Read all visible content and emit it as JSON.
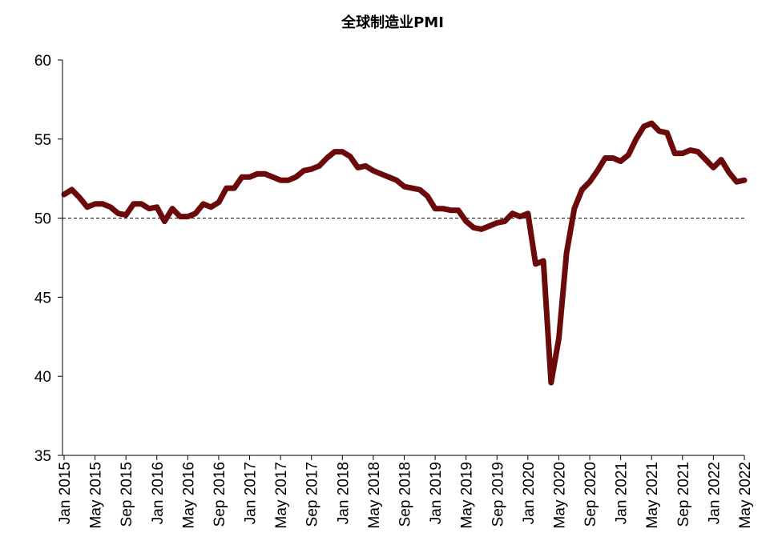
{
  "chart_data": {
    "type": "line",
    "title": "全球制造业PMI",
    "xlabel": "",
    "ylabel": "",
    "ylim": [
      35,
      60
    ],
    "yticks": [
      35,
      40,
      45,
      50,
      55,
      60
    ],
    "reference_line": 50,
    "grid": false,
    "legend": "none",
    "series_color": "#6b0a0a",
    "x_labels": [
      "Jan 2015",
      "May 2015",
      "Sep 2015",
      "Jan 2016",
      "May 2016",
      "Sep 2016",
      "Jan 2017",
      "May 2017",
      "Sep 2017",
      "Jan 2018",
      "May 2018",
      "Sep 2018",
      "Jan 2019",
      "May 2019",
      "Sep 2019",
      "Jan 2020",
      "May 2020",
      "Sep 2020",
      "Jan 2021",
      "May 2021",
      "Sep 2021",
      "Jan 2022",
      "May 2022"
    ],
    "x": [
      "2015-01",
      "2015-02",
      "2015-03",
      "2015-04",
      "2015-05",
      "2015-06",
      "2015-07",
      "2015-08",
      "2015-09",
      "2015-10",
      "2015-11",
      "2015-12",
      "2016-01",
      "2016-02",
      "2016-03",
      "2016-04",
      "2016-05",
      "2016-06",
      "2016-07",
      "2016-08",
      "2016-09",
      "2016-10",
      "2016-11",
      "2016-12",
      "2017-01",
      "2017-02",
      "2017-03",
      "2017-04",
      "2017-05",
      "2017-06",
      "2017-07",
      "2017-08",
      "2017-09",
      "2017-10",
      "2017-11",
      "2017-12",
      "2018-01",
      "2018-02",
      "2018-03",
      "2018-04",
      "2018-05",
      "2018-06",
      "2018-07",
      "2018-08",
      "2018-09",
      "2018-10",
      "2018-11",
      "2018-12",
      "2019-01",
      "2019-02",
      "2019-03",
      "2019-04",
      "2019-05",
      "2019-06",
      "2019-07",
      "2019-08",
      "2019-09",
      "2019-10",
      "2019-11",
      "2019-12",
      "2020-01",
      "2020-02",
      "2020-03",
      "2020-04",
      "2020-05",
      "2020-06",
      "2020-07",
      "2020-08",
      "2020-09",
      "2020-10",
      "2020-11",
      "2020-12",
      "2021-01",
      "2021-02",
      "2021-03",
      "2021-04",
      "2021-05",
      "2021-06",
      "2021-07",
      "2021-08",
      "2021-09",
      "2021-10",
      "2021-11",
      "2021-12",
      "2022-01",
      "2022-02",
      "2022-03",
      "2022-04",
      "2022-05"
    ],
    "series": [
      {
        "values": [
          51.5,
          51.8,
          51.3,
          50.7,
          50.9,
          50.9,
          50.7,
          50.3,
          50.2,
          50.9,
          50.9,
          50.6,
          50.7,
          49.8,
          50.6,
          50.1,
          50.1,
          50.3,
          50.9,
          50.7,
          51.0,
          51.9,
          51.9,
          52.6,
          52.6,
          52.8,
          52.8,
          52.6,
          52.4,
          52.4,
          52.6,
          53.0,
          53.1,
          53.3,
          53.8,
          54.2,
          54.2,
          53.9,
          53.2,
          53.3,
          53.0,
          52.8,
          52.6,
          52.4,
          52.0,
          51.9,
          51.8,
          51.4,
          50.6,
          50.6,
          50.5,
          50.5,
          49.8,
          49.4,
          49.3,
          49.5,
          49.7,
          49.8,
          50.3,
          50.1,
          50.3,
          47.1,
          47.3,
          39.6,
          42.4,
          47.8,
          50.6,
          51.8,
          52.3,
          53.0,
          53.8,
          53.8,
          53.6,
          54.0,
          55.0,
          55.8,
          56.0,
          55.5,
          55.4,
          54.1,
          54.1,
          54.3,
          54.2,
          53.7,
          53.2,
          53.7,
          52.9,
          52.3,
          52.4
        ]
      }
    ]
  }
}
